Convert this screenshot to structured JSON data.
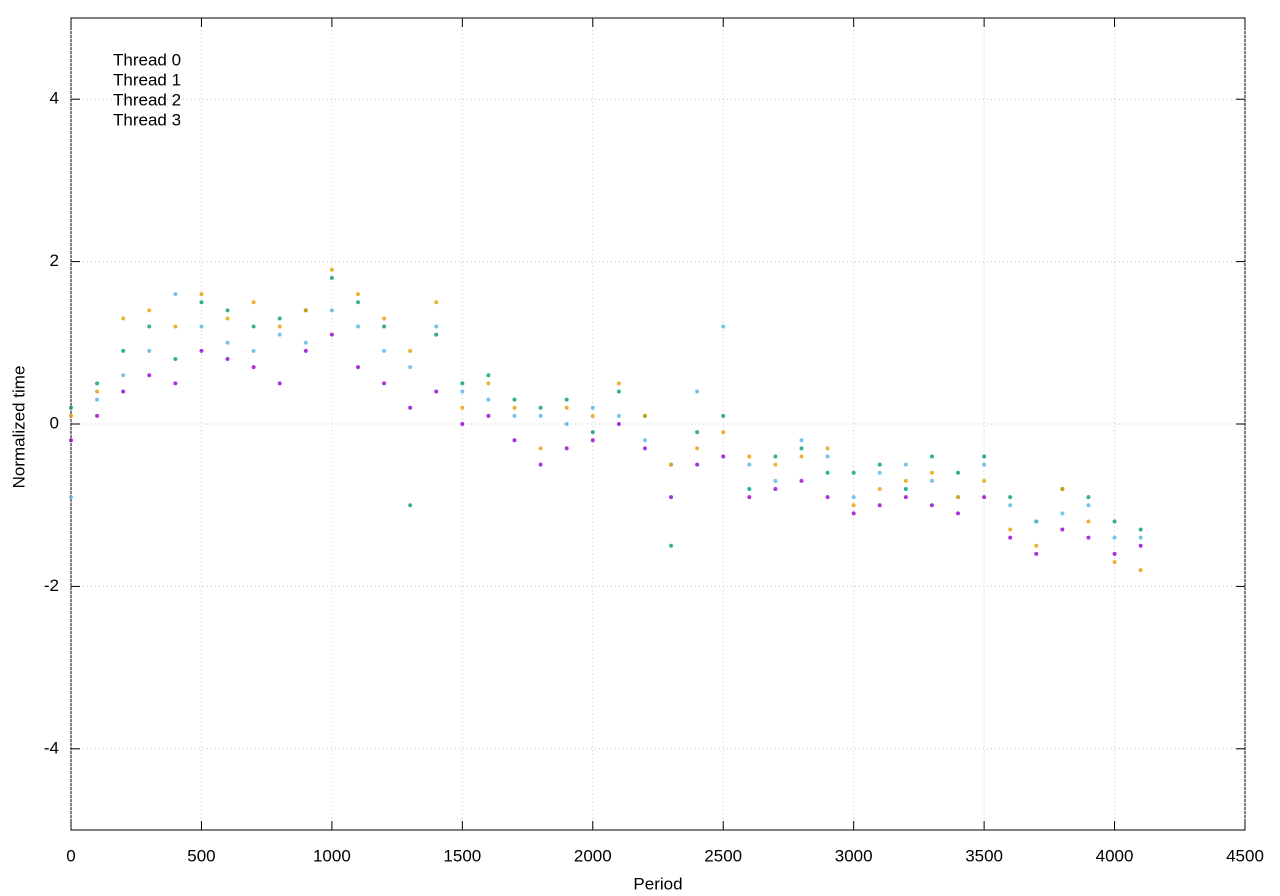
{
  "chart_data": {
    "type": "scatter",
    "x_label": "Period",
    "y_label": "Normalized time",
    "x": [
      0,
      100,
      200,
      300,
      400,
      500,
      600,
      700,
      800,
      900,
      1000,
      1100,
      1200,
      1300,
      1400,
      1500,
      1600,
      1700,
      1800,
      1900,
      2000,
      2100,
      2200,
      2300,
      2400,
      2500,
      2600,
      2700,
      2800,
      2900,
      3000,
      3100,
      3200,
      3300,
      3400,
      3500,
      3600,
      3700,
      3800,
      3900,
      4000,
      4100
    ],
    "series": [
      {
        "name": "Thread 0",
        "color": "#9400d3",
        "values": [
          -0.2,
          0.1,
          0.4,
          0.6,
          0.5,
          0.9,
          0.8,
          0.7,
          0.5,
          0.9,
          1.1,
          0.7,
          0.5,
          0.2,
          0.4,
          0.0,
          0.1,
          -0.2,
          -0.5,
          -0.3,
          -0.2,
          0.0,
          -0.3,
          -0.9,
          -0.5,
          -0.4,
          -0.9,
          -0.8,
          -0.7,
          -0.9,
          -1.1,
          -1.0,
          -0.9,
          -1.0,
          -1.1,
          -0.9,
          -1.4,
          -1.6,
          -1.3,
          -1.4,
          -1.6,
          -1.5
        ]
      },
      {
        "name": "Thread 1",
        "color": "#009e73",
        "values": [
          0.2,
          0.5,
          0.9,
          1.2,
          0.8,
          1.5,
          1.4,
          1.2,
          1.3,
          1.4,
          1.8,
          1.5,
          1.2,
          -1.0,
          1.1,
          0.5,
          0.6,
          0.3,
          0.2,
          0.3,
          -0.1,
          0.4,
          0.1,
          -1.5,
          -0.1,
          0.1,
          -0.8,
          -0.4,
          -0.3,
          -0.6,
          -0.6,
          -0.5,
          -0.8,
          -0.4,
          -0.6,
          -0.4,
          -0.9,
          -1.2,
          -0.8,
          -0.9,
          -1.2,
          -1.3
        ]
      },
      {
        "name": "Thread 2",
        "color": "#56b4e9",
        "values": [
          -0.9,
          0.3,
          0.6,
          0.9,
          1.6,
          1.2,
          1.0,
          0.9,
          1.1,
          1.0,
          1.4,
          1.2,
          0.9,
          0.7,
          1.2,
          0.4,
          0.3,
          0.1,
          0.1,
          0.0,
          0.2,
          0.1,
          -0.2,
          -0.5,
          0.4,
          1.2,
          -0.5,
          -0.7,
          -0.2,
          -0.4,
          -0.9,
          -0.6,
          -0.5,
          -0.7,
          -0.9,
          -0.5,
          -1.0,
          -1.2,
          -1.1,
          -1.0,
          -1.4,
          -1.4
        ]
      },
      {
        "name": "Thread 3",
        "color": "#e69f00",
        "values": [
          0.1,
          0.4,
          1.3,
          1.4,
          1.2,
          1.6,
          1.3,
          1.5,
          1.2,
          1.4,
          1.9,
          1.6,
          1.3,
          0.9,
          1.5,
          0.2,
          0.5,
          0.2,
          -0.3,
          0.2,
          0.1,
          0.5,
          0.1,
          -0.5,
          -0.3,
          -0.1,
          -0.4,
          -0.5,
          -0.4,
          -0.3,
          -1.0,
          -0.8,
          -0.7,
          -0.6,
          -0.9,
          -0.7,
          -1.3,
          -1.5,
          -0.8,
          -1.2,
          -1.7,
          -1.8
        ]
      }
    ],
    "xlim": [
      0,
      4500
    ],
    "xticks": [
      0,
      500,
      1000,
      1500,
      2000,
      2500,
      3000,
      3500,
      4000,
      4500
    ],
    "ylim": [
      -5,
      5
    ],
    "yticks": [
      -4,
      -2,
      0,
      2,
      4
    ],
    "grid": true,
    "legend": "top-left"
  }
}
